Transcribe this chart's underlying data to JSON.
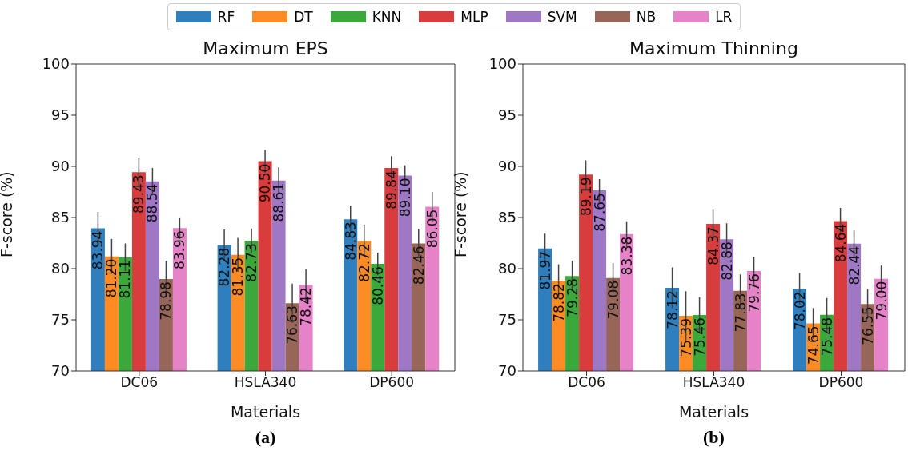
{
  "chart_data": [
    {
      "type": "bar",
      "title": "Maximum EPS",
      "xlabel": "Materials",
      "ylabel": "F-score (%)",
      "categories": [
        "DC06",
        "HSLA340",
        "DP600"
      ],
      "ylim": [
        70,
        100
      ],
      "yticks": [
        70,
        75,
        80,
        85,
        90,
        95,
        100
      ],
      "grid": false,
      "legend": "top",
      "annotations": [
        "(a)"
      ],
      "series": [
        {
          "name": "RF",
          "color": "#2f7fbf",
          "values": [
            83.94,
            82.28,
            84.83
          ],
          "value_labels": [
            "83.94",
            "82.28",
            "84.83"
          ],
          "errors": [
            1.6,
            1.55,
            1.35
          ]
        },
        {
          "name": "DT",
          "color": "#ff8b24",
          "values": [
            81.2,
            81.35,
            82.72
          ],
          "value_labels": [
            "81.20",
            "81.35",
            "82.72"
          ],
          "errors": [
            1.7,
            1.65,
            1.6
          ]
        },
        {
          "name": "KNN",
          "color": "#3aa83a",
          "values": [
            81.11,
            82.73,
            80.46
          ],
          "value_labels": [
            "81.11",
            "82.73",
            "80.46"
          ],
          "errors": [
            1.35,
            1.2,
            1.1
          ]
        },
        {
          "name": "MLP",
          "color": "#d83c3c",
          "values": [
            89.43,
            90.5,
            89.84
          ],
          "value_labels": [
            "89.43",
            "90.50",
            "89.84"
          ],
          "errors": [
            1.4,
            1.1,
            1.15
          ]
        },
        {
          "name": "SVM",
          "color": "#9e78c5",
          "values": [
            88.54,
            88.61,
            89.1
          ],
          "value_labels": [
            "88.54",
            "88.61",
            "89.10"
          ],
          "errors": [
            1.3,
            1.3,
            1.0
          ]
        },
        {
          "name": "NB",
          "color": "#986559",
          "values": [
            78.98,
            76.63,
            82.46
          ],
          "value_labels": [
            "78.98",
            "76.63",
            "82.46"
          ],
          "errors": [
            1.8,
            1.9,
            1.4
          ]
        },
        {
          "name": "LR",
          "color": "#e682c8",
          "values": [
            83.96,
            78.42,
            86.05
          ],
          "value_labels": [
            "83.96",
            "78.42",
            "86.05"
          ],
          "errors": [
            1.05,
            1.55,
            1.45
          ]
        }
      ]
    },
    {
      "type": "bar",
      "title": "Maximum Thinning",
      "xlabel": "Materials",
      "ylabel": "F-score (%)",
      "categories": [
        "DC06",
        "HSLA340",
        "DP600"
      ],
      "ylim": [
        70,
        100
      ],
      "yticks": [
        70,
        75,
        80,
        85,
        90,
        95,
        100
      ],
      "grid": false,
      "annotations": [
        "(b)"
      ],
      "series": [
        {
          "color": "#2f7fbf",
          "values": [
            81.97,
            78.12,
            78.02
          ],
          "value_labels": [
            "81.97",
            "78.12",
            "78.02"
          ],
          "errors": [
            1.45,
            2.0,
            1.55
          ]
        },
        {
          "color": "#ff8b24",
          "values": [
            78.82,
            75.39,
            74.65
          ],
          "value_labels": [
            "78.82",
            "75.39",
            "74.65"
          ],
          "errors": [
            1.6,
            2.4,
            1.5
          ]
        },
        {
          "color": "#3aa83a",
          "values": [
            79.28,
            75.46,
            75.48
          ],
          "value_labels": [
            "79.28",
            "75.46",
            "75.48"
          ],
          "errors": [
            1.5,
            1.75,
            1.65
          ]
        },
        {
          "color": "#d83c3c",
          "values": [
            89.19,
            84.37,
            84.64
          ],
          "value_labels": [
            "89.19",
            "84.37",
            "84.64"
          ],
          "errors": [
            1.4,
            1.45,
            1.3
          ]
        },
        {
          "color": "#9e78c5",
          "values": [
            87.65,
            82.88,
            82.44
          ],
          "value_labels": [
            "87.65",
            "82.88",
            "82.44"
          ],
          "errors": [
            1.1,
            1.55,
            1.3
          ]
        },
        {
          "color": "#986559",
          "values": [
            79.08,
            77.83,
            76.55
          ],
          "value_labels": [
            "79.08",
            "77.83",
            "76.55"
          ],
          "errors": [
            1.5,
            1.6,
            1.45
          ]
        },
        {
          "color": "#e682c8",
          "values": [
            83.38,
            79.76,
            79.0
          ],
          "value_labels": [
            "83.38",
            "79.76",
            "79.00"
          ],
          "errors": [
            1.25,
            1.4,
            1.3
          ]
        }
      ]
    }
  ]
}
